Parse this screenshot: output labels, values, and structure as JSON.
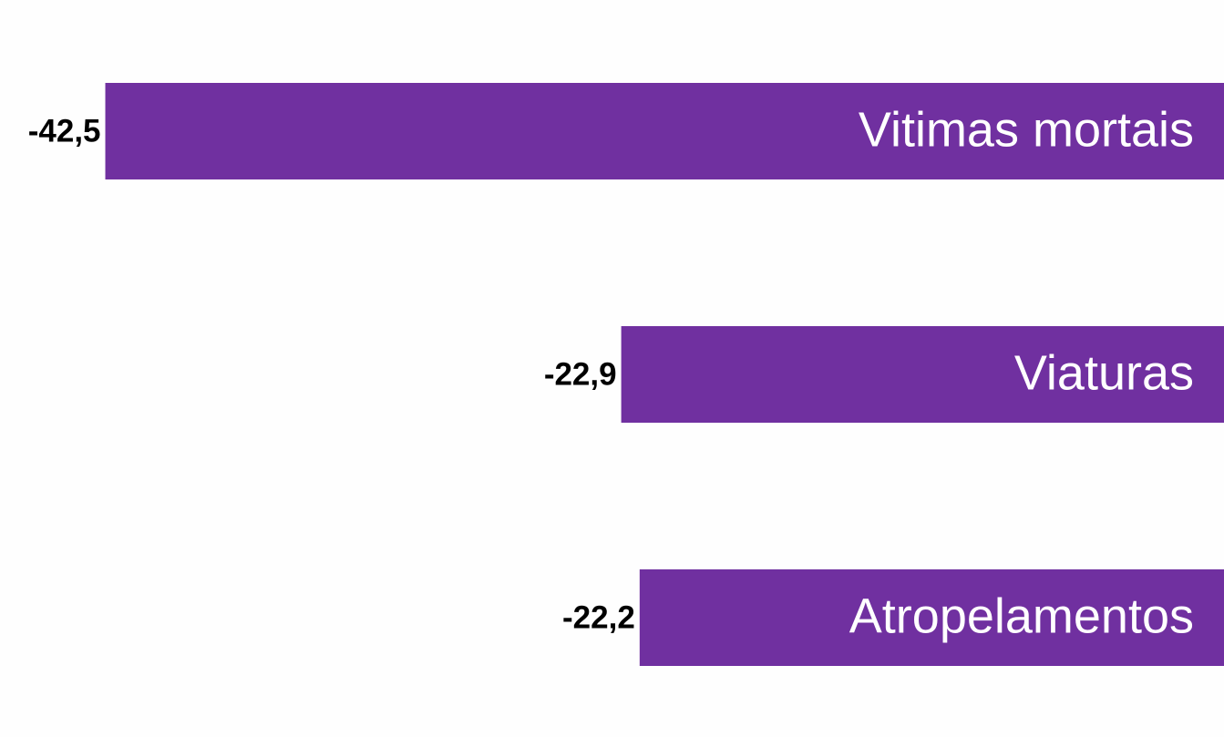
{
  "chart_data": {
    "type": "bar",
    "orientation": "horizontal",
    "categories": [
      "Vitimas mortais",
      "Viaturas",
      "Atropelamentos"
    ],
    "values": [
      -42.5,
      -22.9,
      -22.2
    ],
    "value_labels": [
      "-42,5",
      "-22,9",
      "-22,2"
    ],
    "color": "#7030a0",
    "xlim": [
      -46.5,
      0
    ]
  }
}
